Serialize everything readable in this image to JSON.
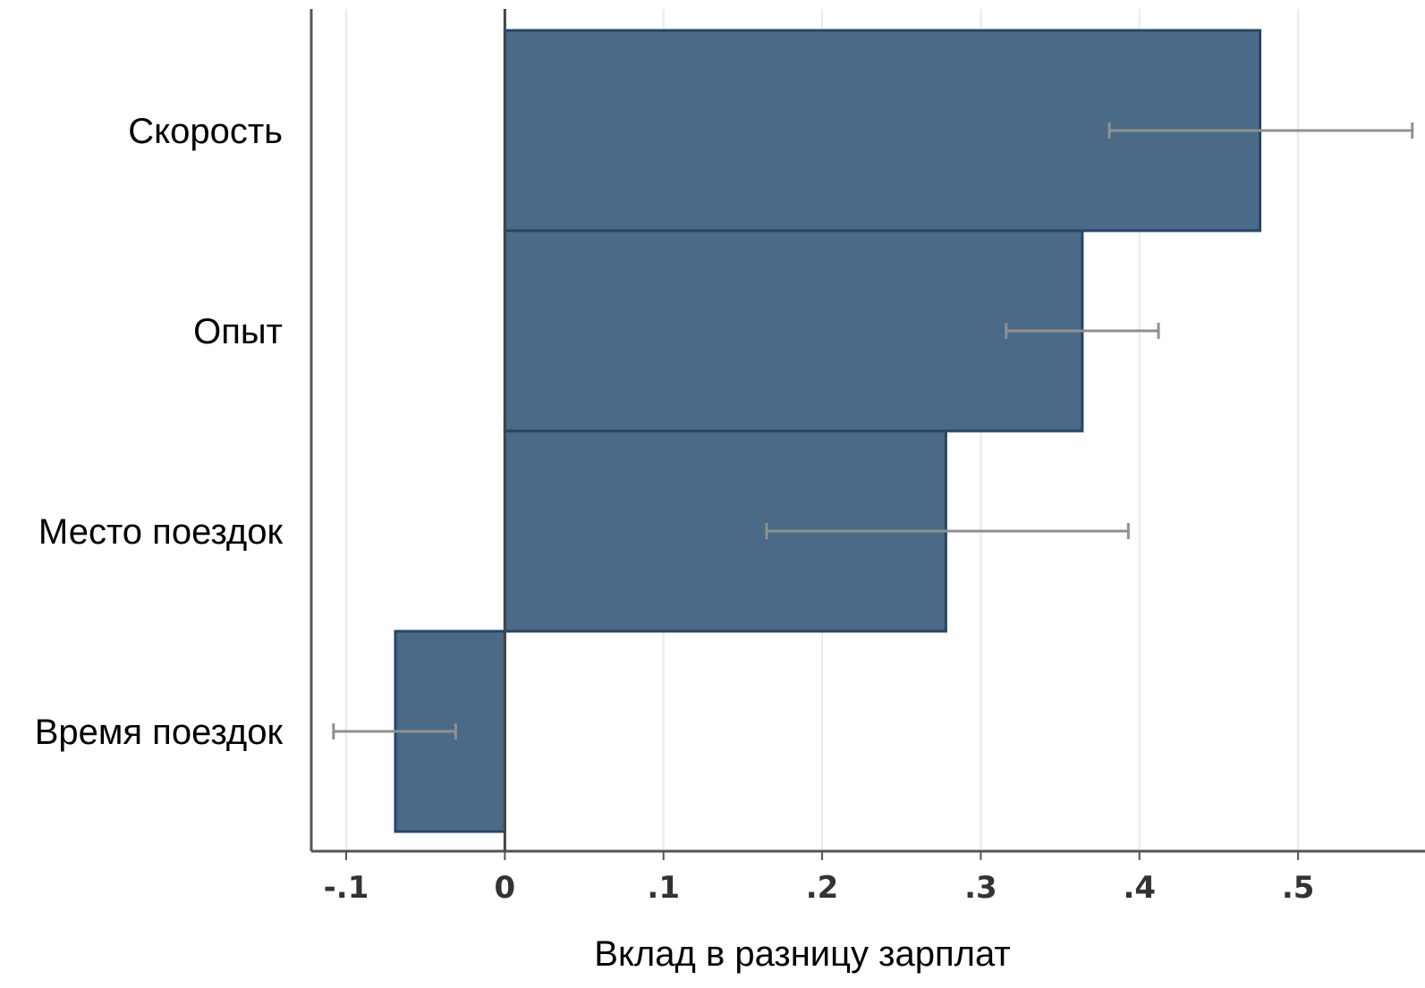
{
  "chart_data": {
    "type": "bar",
    "orientation": "horizontal",
    "categories": [
      "Скорость",
      "Опыт",
      "Место поездок",
      "Время поездок"
    ],
    "values": [
      0.476,
      0.364,
      0.278,
      -0.069
    ],
    "ci_low": [
      0.381,
      0.316,
      0.165,
      -0.108
    ],
    "ci_high": [
      0.572,
      0.412,
      0.393,
      -0.031
    ],
    "xlabel": "Вклад в разницу зарплат",
    "ylabel": "",
    "xlim": [
      -0.122,
      0.58
    ],
    "xticks": [
      -0.1,
      0,
      0.1,
      0.2,
      0.3,
      0.4,
      0.5
    ],
    "xtick_labels": [
      "-.1",
      "0",
      ".1",
      ".2",
      ".3",
      ".4",
      ".5"
    ],
    "grid": "vertical",
    "colors": {
      "bar_fill": "#4a6a88",
      "bar_edge": "#25466a",
      "error_bar": "#909090",
      "grid": "#e3ecef",
      "axis": "#555555"
    }
  }
}
